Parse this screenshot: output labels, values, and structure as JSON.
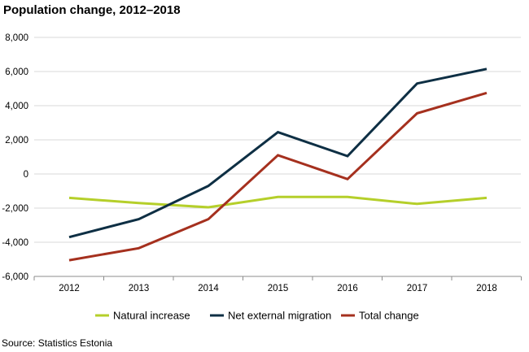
{
  "title": "Population change, 2012–2018",
  "source": "Source: Statistics Estonia",
  "chart_data": {
    "type": "line",
    "title": "Population change, 2012–2018",
    "xlabel": "",
    "ylabel": "",
    "x": [
      "2012",
      "2013",
      "2014",
      "2015",
      "2016",
      "2017",
      "2018"
    ],
    "ylim": [
      -6000,
      8000
    ],
    "yticks": [
      8000,
      6000,
      4000,
      2000,
      0,
      -2000,
      -4000,
      -6000
    ],
    "ytick_labels": [
      "8,000",
      "6,000",
      "4,000",
      "2,000",
      "0",
      "-2,000",
      "-4,000",
      "-6,000"
    ],
    "grid": true,
    "legend_position": "bottom",
    "series": [
      {
        "name": "Natural increase",
        "color": "#b5cf2a",
        "values": [
          -1400,
          -1700,
          -1950,
          -1350,
          -1350,
          -1750,
          -1400
        ]
      },
      {
        "name": "Net external migration",
        "color": "#0e2f44",
        "values": [
          -3700,
          -2650,
          -700,
          2450,
          1050,
          5300,
          6150
        ]
      },
      {
        "name": "Total change",
        "color": "#a5301e",
        "values": [
          -5050,
          -4350,
          -2650,
          1100,
          -300,
          3550,
          4750
        ]
      }
    ]
  }
}
